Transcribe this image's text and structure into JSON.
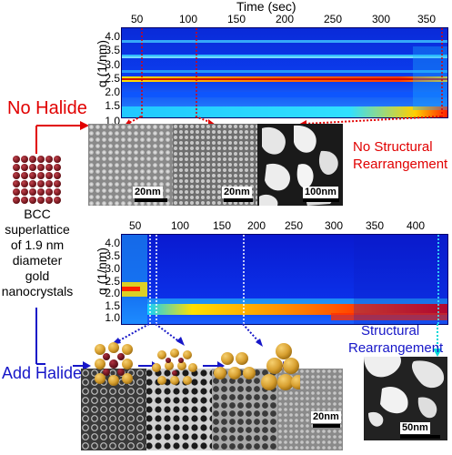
{
  "top_panel": {
    "x_title": "Time (sec)",
    "x_ticks": [
      "50",
      "100",
      "150",
      "200",
      "250",
      "300",
      "350"
    ],
    "y_title": "q (1/nm)",
    "y_ticks": [
      "4.0",
      "3.5",
      "3.0",
      "2.5",
      "2.0",
      "1.5",
      "1.0"
    ],
    "condition_label": "No Halide",
    "outcome_label_line1": "No Structural",
    "outcome_label_line2": "Rearrangement",
    "scale_bars": [
      "20nm",
      "20nm",
      "100nm"
    ]
  },
  "bottom_panel": {
    "x_ticks": [
      "50",
      "100",
      "150",
      "200",
      "250",
      "300",
      "350",
      "400"
    ],
    "y_title": "q (1/nm)",
    "y_ticks": [
      "4.0",
      "3.5",
      "3.0",
      "2.5",
      "2.0",
      "1.5",
      "1.0"
    ],
    "condition_label": "Add  Halide",
    "outcome_label_line1": "Structural",
    "outcome_label_line2": "Rearrangement",
    "scale_bars": [
      "20nm",
      "50nm"
    ]
  },
  "left_label": {
    "lines": [
      "BCC",
      "superlattice",
      "of 1.9 nm",
      "diameter",
      "gold",
      "nanocrystals"
    ]
  },
  "colors": {
    "red_accent": "#e10000",
    "blue_accent": "#1616c8",
    "heatmap_background": "#0a3cf0",
    "gold": "#d8a030",
    "dark_red": "#7a0a10"
  }
}
